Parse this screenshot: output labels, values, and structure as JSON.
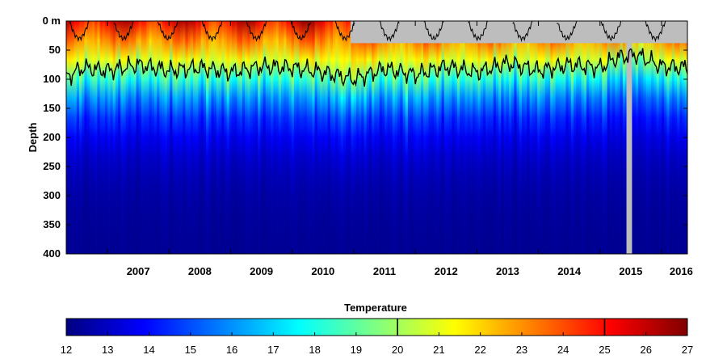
{
  "chart_data": {
    "type": "heatmap",
    "title": "",
    "xlabel": "",
    "ylabel": "Depth",
    "y_unit": "m",
    "y_reversed": true,
    "ylim": [
      400,
      0
    ],
    "yticks": [
      0,
      50,
      100,
      150,
      200,
      250,
      300,
      350,
      400
    ],
    "ytick_labels": [
      "0 m",
      "50",
      "100",
      "150",
      "200",
      "250",
      "300",
      "350",
      "400"
    ],
    "xlim": [
      2006.33,
      2016.42
    ],
    "x_year_labels": [
      "2007",
      "2008",
      "2009",
      "2010",
      "2011",
      "2012",
      "2013",
      "2014",
      "2015",
      "2016"
    ],
    "colorbar": {
      "label": "Temperature",
      "colormap": "jet",
      "range": [
        12,
        27
      ],
      "ticks": [
        12,
        13,
        14,
        15,
        16,
        17,
        18,
        19,
        20,
        21,
        22,
        23,
        24,
        25,
        26,
        27
      ],
      "contour_marks": [
        20,
        25
      ]
    },
    "contours": [
      {
        "level": 20,
        "depth_range_m": [
          55,
          130
        ]
      },
      {
        "level": 25,
        "depth_range_m": [
          0,
          60
        ]
      }
    ],
    "mixed_layer_20C_depth": {
      "x": [
        2006.35,
        2006.6,
        2007.0,
        2007.5,
        2008.0,
        2008.5,
        2009.0,
        2009.5,
        2010.0,
        2010.5,
        2011.0,
        2011.5,
        2012.0,
        2012.5,
        2013.0,
        2013.5,
        2014.0,
        2014.5,
        2015.0,
        2015.3,
        2015.6,
        2016.0,
        2016.4
      ],
      "y": [
        95,
        80,
        85,
        75,
        85,
        80,
        88,
        78,
        80,
        88,
        100,
        82,
        92,
        78,
        88,
        72,
        85,
        75,
        80,
        62,
        58,
        78,
        80
      ]
    },
    "missing_data": [
      {
        "x_start": 2010.95,
        "x_end": 2016.42,
        "depth_m": [
          0,
          38
        ]
      },
      {
        "x_start": 2015.43,
        "x_end": 2015.52,
        "depth_m": [
          0,
          400
        ]
      }
    ],
    "colors": {
      "missing": "#bdbdbd",
      "contour": "#000000"
    }
  }
}
